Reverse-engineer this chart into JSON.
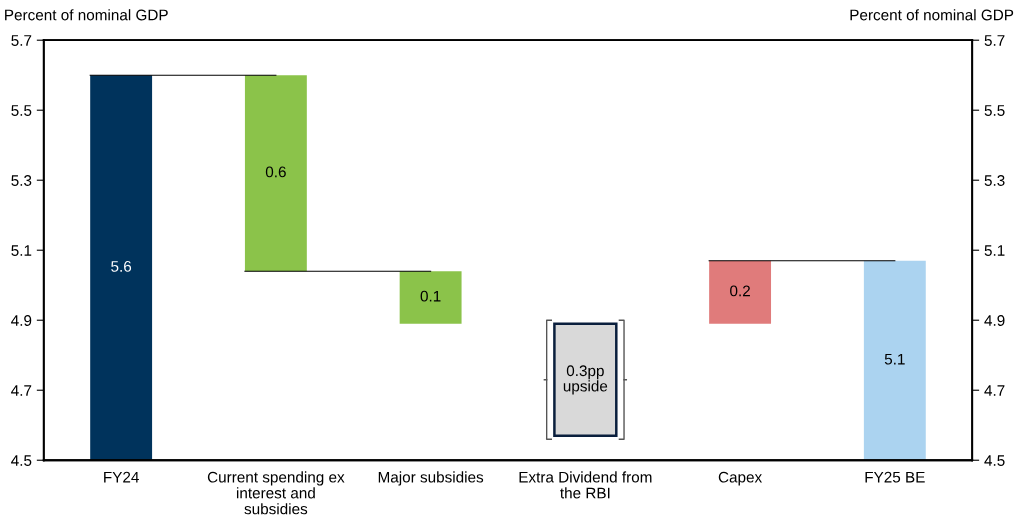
{
  "chart_data": {
    "type": "bar",
    "categories": [
      "FY24",
      "Current spending ex\ninterest and\nsubsidies",
      "Major subsidies",
      "Extra Dividend from\nthe RBI",
      "Capex",
      "FY25 BE"
    ],
    "series": [
      {
        "colors": [
          "#00335c",
          "#8bc34a",
          "#8bc34a",
          null,
          "#e07b7b",
          "#abd3f0"
        ],
        "base": [
          null,
          5.04,
          4.89,
          null,
          4.89,
          null
        ],
        "values": [
          5.6,
          0.56,
          0.15,
          null,
          0.18,
          5.07
        ],
        "value_labels": [
          "5.6",
          "0.6",
          "0.1",
          null,
          "0.2",
          "5.1"
        ]
      },
      {
        "color": "#d9d9d9",
        "base": [
          null,
          null,
          null,
          4.57,
          null,
          null
        ],
        "values": [
          null,
          null,
          null,
          0.32,
          null,
          null
        ],
        "value_labels": [
          null,
          null,
          null,
          "0.3pp\nupside",
          null,
          null
        ]
      }
    ],
    "ylabel": "Percent of nominal GDP",
    "y2label": "Percent of nominal GDP",
    "ylim": [
      4.5,
      5.7
    ],
    "yticks": [
      {
        "value": 4.5,
        "label": "4.5"
      },
      {
        "value": 4.7,
        "label": "4.7"
      },
      {
        "value": 4.9,
        "label": "4.9"
      },
      {
        "value": 5.1,
        "label": "5.1"
      },
      {
        "value": 5.3,
        "label": "5.3"
      },
      {
        "value": 5.5,
        "label": "5.5"
      },
      {
        "value": 5.7,
        "label": "5.7"
      }
    ],
    "y2lim": [
      4.5,
      5.7
    ],
    "y2ticks": [
      {
        "value": 4.5,
        "label": "4.5"
      },
      {
        "value": 4.7,
        "label": "4.7"
      },
      {
        "value": 4.9,
        "label": "4.9"
      },
      {
        "value": 5.1,
        "label": "5.1"
      },
      {
        "value": 5.3,
        "label": "5.3"
      },
      {
        "value": 5.5,
        "label": "5.5"
      },
      {
        "value": 5.7,
        "label": "5.7"
      }
    ],
    "grid": false,
    "legend": false
  }
}
